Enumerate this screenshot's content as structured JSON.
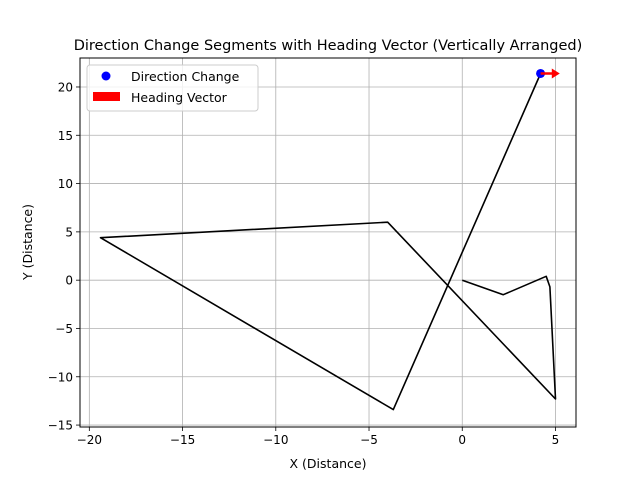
{
  "chart_data": {
    "type": "line",
    "title": "Direction Change Segments with Heading Vector (Vertically Arranged)",
    "xlabel": "X (Distance)",
    "ylabel": "Y (Distance)",
    "xlim": [
      -20.5,
      6.1
    ],
    "ylim": [
      -15.2,
      23.0
    ],
    "xticks": [
      -20,
      -15,
      -10,
      -5,
      0,
      5
    ],
    "yticks": [
      -15,
      -10,
      -5,
      0,
      5,
      10,
      15,
      20
    ],
    "grid": true,
    "legend_placement": "top-left",
    "path": [
      {
        "x": 0.0,
        "y": 0.0
      },
      {
        "x": 2.2,
        "y": -1.5
      },
      {
        "x": 4.5,
        "y": 0.4
      },
      {
        "x": 4.7,
        "y": -0.7
      },
      {
        "x": 5.0,
        "y": -12.3
      },
      {
        "x": -4.0,
        "y": 6.0
      },
      {
        "x": -19.4,
        "y": 4.4
      },
      {
        "x": -3.7,
        "y": -13.4
      },
      {
        "x": 4.2,
        "y": 21.4
      }
    ],
    "path_color": "#000000",
    "direction_change": {
      "name": "Direction Change",
      "x": 4.2,
      "y": 21.4,
      "color": "#0000ff"
    },
    "heading_vector": {
      "name": "Heading Vector",
      "x": 4.2,
      "y": 21.4,
      "dx": 0.6,
      "dy": 0.0,
      "color": "#ff0000"
    }
  }
}
